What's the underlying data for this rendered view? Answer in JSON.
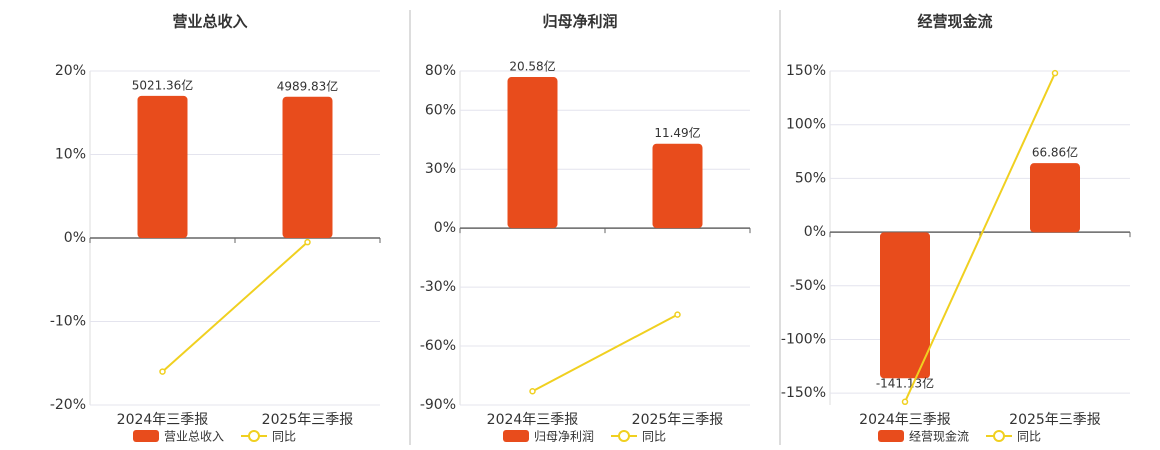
{
  "chart_data": [
    {
      "type": "bar",
      "title": "营业总收入",
      "categories": [
        "2024年三季报",
        "2025年三季报"
      ],
      "ylim": [
        -20,
        20
      ],
      "yticks": [
        {
          "value": -20,
          "label": "-20%"
        },
        {
          "value": -10,
          "label": "-10%"
        },
        {
          "value": 0,
          "label": "0%"
        },
        {
          "value": 10,
          "label": "10%"
        },
        {
          "value": 20,
          "label": "20%"
        }
      ],
      "y2lim": [
        -5900,
        5900
      ],
      "grid": true,
      "series": [
        {
          "name": "营业总收入",
          "color": "#e84c1c",
          "type": "bar",
          "axis": "y2",
          "values": [
            5021.36,
            4989.83
          ],
          "value_labels": [
            "5021.36亿",
            "4989.83亿"
          ]
        },
        {
          "name": "同比",
          "color": "#f0d020",
          "type": "line",
          "values": [
            -16.0,
            -0.5
          ]
        }
      ]
    },
    {
      "type": "bar",
      "title": "归母净利润",
      "categories": [
        "2024年三季报",
        "2025年三季报"
      ],
      "ylim": [
        -90,
        80
      ],
      "yticks": [
        {
          "value": -90,
          "label": "-90%"
        },
        {
          "value": -60,
          "label": "-60%"
        },
        {
          "value": -30,
          "label": "-30%"
        },
        {
          "value": 0,
          "label": "0%"
        },
        {
          "value": 30,
          "label": "30%"
        },
        {
          "value": 60,
          "label": "60%"
        },
        {
          "value": 80,
          "label": "80%"
        }
      ],
      "y2lim": [
        -24.1,
        21.4
      ],
      "grid": true,
      "series": [
        {
          "name": "归母净利润",
          "color": "#e84c1c",
          "type": "bar",
          "axis": "y2",
          "values": [
            20.58,
            11.49
          ],
          "value_labels": [
            "20.58亿",
            "11.49亿"
          ]
        },
        {
          "name": "同比",
          "color": "#f0d020",
          "type": "line",
          "values": [
            -83,
            -44
          ]
        }
      ]
    },
    {
      "type": "bar",
      "title": "经营现金流",
      "categories": [
        "2024年三季报",
        "2025年三季报"
      ],
      "ylim": [
        -161,
        150
      ],
      "yticks": [
        {
          "value": -150,
          "label": "-150%"
        },
        {
          "value": -100,
          "label": "-100%"
        },
        {
          "value": -50,
          "label": "-50%"
        },
        {
          "value": 0,
          "label": "0%"
        },
        {
          "value": 50,
          "label": "50%"
        },
        {
          "value": 100,
          "label": "100%"
        },
        {
          "value": 150,
          "label": "150%"
        }
      ],
      "y2lim": [
        -167,
        156
      ],
      "grid": true,
      "series": [
        {
          "name": "经营现金流",
          "color": "#e84c1c",
          "type": "bar",
          "axis": "y2",
          "values": [
            -141.13,
            66.86
          ],
          "value_labels": [
            "-141.13亿",
            "66.86亿"
          ]
        },
        {
          "name": "同比",
          "color": "#f0d020",
          "type": "line",
          "values": [
            -158,
            148
          ]
        }
      ]
    }
  ]
}
